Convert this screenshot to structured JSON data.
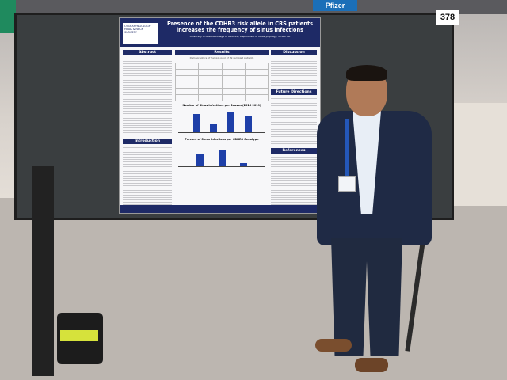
{
  "scene": {
    "booth_number": "378",
    "top_banner": "Pfizer"
  },
  "poster": {
    "logo_line1": "OTOLARYNGOLOGY",
    "logo_line2": "HEAD & NECK SURGERY",
    "title": "Presence of the CDHR3 risk allele in CRS patients increases the frequency of sinus infections",
    "authors": "University of Arizona College of Medicine, Department of Otolaryngology, Tucson AZ",
    "sections": {
      "abstract": "Abstract",
      "introduction": "Introduction",
      "results": "Results",
      "discussion": "Discussion",
      "future": "Future Directions",
      "references": "References"
    },
    "table_caption": "Demographics of Sample pool of 39 sampled patients",
    "chart1_caption": "Number of Sinus Infections per Season (2015-2019)",
    "chart1_values": [
      0.8,
      0.35,
      0.9,
      0.7
    ],
    "chart2_caption": "Percent of Sinus Infections per CDHR3 Genotype",
    "chart2_values": [
      0.55,
      0.7,
      0.12
    ]
  }
}
